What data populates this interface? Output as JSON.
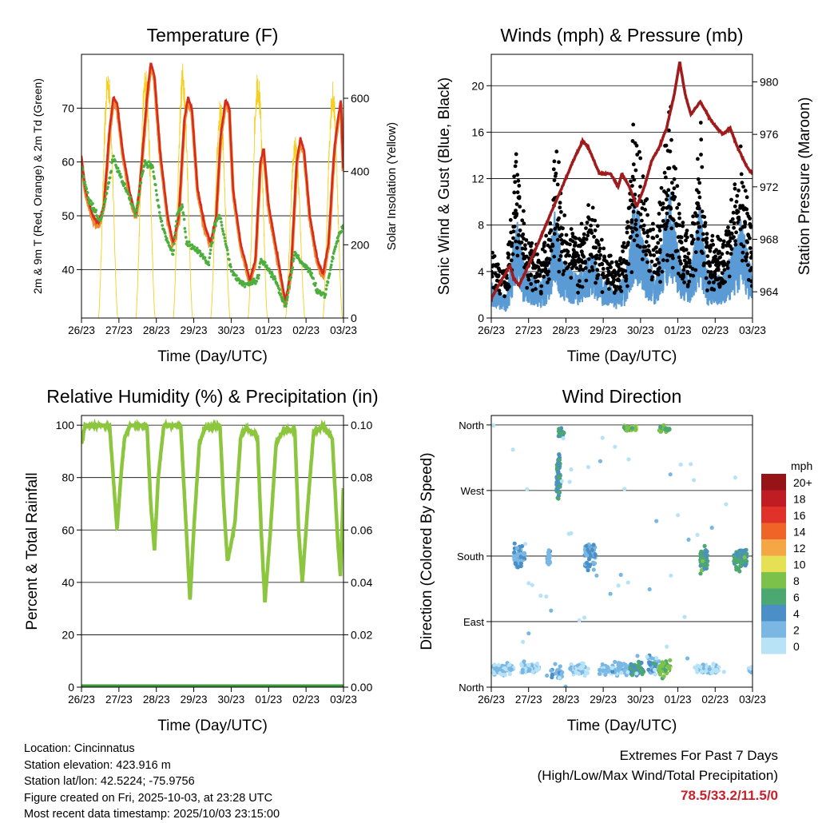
{
  "chart_data": [
    {
      "type": "line",
      "title": "Temperature (F)",
      "xlabel": "Time (Day/UTC)",
      "ylabel": "2m & 9m T (Red, Orange) & 2m Td (Green)",
      "ylabel_right": "Solar Insolation (Yellow)",
      "x_ticks": [
        "26/23",
        "27/23",
        "28/23",
        "29/23",
        "30/23",
        "01/23",
        "02/23",
        "03/23"
      ],
      "xlim_days": [
        0,
        7
      ],
      "ylim": [
        31,
        80
      ],
      "ylim_right": [
        0,
        720
      ],
      "y_ticks": [
        40,
        50,
        60,
        70
      ],
      "y_ticks_right": [
        0,
        200,
        400,
        600
      ],
      "series": [
        {
          "name": "2m T",
          "color": "#d42a20",
          "points": [
            [
              0,
              61
            ],
            [
              0.1,
              55
            ],
            [
              0.3,
              50
            ],
            [
              0.45,
              48.5
            ],
            [
              0.6,
              52
            ],
            [
              0.75,
              66
            ],
            [
              0.85,
              72
            ],
            [
              0.95,
              71
            ],
            [
              1.1,
              62
            ],
            [
              1.3,
              54
            ],
            [
              1.45,
              50
            ],
            [
              1.55,
              55
            ],
            [
              1.75,
              72
            ],
            [
              1.85,
              78.5
            ],
            [
              1.95,
              76
            ],
            [
              2.1,
              62
            ],
            [
              2.3,
              50
            ],
            [
              2.45,
              45
            ],
            [
              2.6,
              50
            ],
            [
              2.75,
              68
            ],
            [
              2.85,
              72
            ],
            [
              2.95,
              70
            ],
            [
              3.1,
              55
            ],
            [
              3.3,
              48
            ],
            [
              3.45,
              45
            ],
            [
              3.6,
              50
            ],
            [
              3.72,
              65
            ],
            [
              3.85,
              71.5
            ],
            [
              3.95,
              70
            ],
            [
              4.05,
              55
            ],
            [
              4.25,
              45
            ],
            [
              4.5,
              38
            ],
            [
              4.65,
              42
            ],
            [
              4.78,
              60
            ],
            [
              4.87,
              62.5
            ],
            [
              5.0,
              52
            ],
            [
              5.25,
              42
            ],
            [
              5.45,
              34
            ],
            [
              5.6,
              40
            ],
            [
              5.75,
              60
            ],
            [
              5.85,
              64.5
            ],
            [
              5.95,
              62
            ],
            [
              6.1,
              50
            ],
            [
              6.3,
              42
            ],
            [
              6.45,
              39
            ],
            [
              6.6,
              45
            ],
            [
              6.75,
              62
            ],
            [
              6.85,
              68
            ],
            [
              6.93,
              71.5
            ],
            [
              7.0,
              57
            ]
          ]
        },
        {
          "name": "9m T",
          "color": "#f08a30",
          "offset": 0.6
        },
        {
          "name": "2m Td",
          "color": "#4caf3c",
          "points": [
            [
              0,
              59
            ],
            [
              0.2,
              53
            ],
            [
              0.5,
              49
            ],
            [
              0.7,
              55
            ],
            [
              0.85,
              61
            ],
            [
              1.0,
              58
            ],
            [
              1.3,
              53
            ],
            [
              1.45,
              50
            ],
            [
              1.6,
              57
            ],
            [
              1.7,
              60
            ],
            [
              1.9,
              59
            ],
            [
              2.1,
              50
            ],
            [
              2.3,
              45
            ],
            [
              2.45,
              43
            ],
            [
              2.55,
              50
            ],
            [
              2.7,
              52
            ],
            [
              2.8,
              45
            ],
            [
              3.0,
              44
            ],
            [
              3.2,
              43
            ],
            [
              3.4,
              41
            ],
            [
              3.55,
              48
            ],
            [
              3.7,
              50
            ],
            [
              3.85,
              45
            ],
            [
              4.0,
              40
            ],
            [
              4.2,
              38
            ],
            [
              4.4,
              37
            ],
            [
              4.7,
              38
            ],
            [
              4.8,
              42
            ],
            [
              5.0,
              40
            ],
            [
              5.2,
              38
            ],
            [
              5.45,
              33
            ],
            [
              5.7,
              43
            ],
            [
              5.9,
              41
            ],
            [
              6.1,
              40
            ],
            [
              6.3,
              36
            ],
            [
              6.5,
              35
            ],
            [
              6.7,
              42
            ],
            [
              6.85,
              46
            ],
            [
              7.0,
              48
            ]
          ]
        },
        {
          "name": "Solar Insolation",
          "color": "#f5d020",
          "axis": "right",
          "daily_peaks": [
            690,
            690,
            700,
            600,
            690,
            500,
            650
          ]
        }
      ]
    },
    {
      "type": "scatter",
      "title": "Winds (mph) & Pressure (mb)",
      "xlabel": "Time (Day/UTC)",
      "ylabel": "Sonic Wind & Gust (Blue, Black)",
      "ylabel_right": "Station Pressure (Maroon)",
      "x_ticks": [
        "26/23",
        "27/23",
        "28/23",
        "29/23",
        "30/23",
        "01/23",
        "02/23",
        "03/23"
      ],
      "ylim": [
        0,
        22.7
      ],
      "ylim_right": [
        962,
        982.1
      ],
      "y_ticks": [
        0,
        4,
        8,
        12,
        16,
        20
      ],
      "y_ticks_right": [
        964,
        968,
        972,
        976,
        980
      ],
      "series": [
        {
          "name": "Sonic Wind",
          "color": "#5a9bd5",
          "envelope": [
            [
              0,
              2.5
            ],
            [
              0.4,
              1.5
            ],
            [
              0.7,
              7
            ],
            [
              0.85,
              4
            ],
            [
              1.2,
              2.5
            ],
            [
              1.5,
              3
            ],
            [
              1.7,
              8
            ],
            [
              1.9,
              4
            ],
            [
              2.3,
              3
            ],
            [
              2.7,
              5
            ],
            [
              2.9,
              3
            ],
            [
              3.3,
              2
            ],
            [
              3.6,
              3
            ],
            [
              3.85,
              9
            ],
            [
              4.1,
              5
            ],
            [
              4.4,
              3
            ],
            [
              4.6,
              6
            ],
            [
              4.8,
              9
            ],
            [
              5.0,
              5
            ],
            [
              5.3,
              3
            ],
            [
              5.6,
              8
            ],
            [
              5.8,
              3
            ],
            [
              6.2,
              3
            ],
            [
              6.5,
              5
            ],
            [
              6.7,
              7
            ],
            [
              7,
              3
            ]
          ]
        },
        {
          "name": "Gust",
          "color": "#000000"
        },
        {
          "name": "Station Pressure",
          "color": "#a01c1c",
          "points": [
            [
              0,
              963.5
            ],
            [
              0.3,
              965
            ],
            [
              0.5,
              966
            ],
            [
              0.6,
              965
            ],
            [
              0.75,
              964.5
            ],
            [
              1.0,
              966
            ],
            [
              1.3,
              968
            ],
            [
              1.6,
              970
            ],
            [
              1.9,
              972
            ],
            [
              2.2,
              974
            ],
            [
              2.45,
              975.5
            ],
            [
              2.6,
              975
            ],
            [
              2.9,
              973
            ],
            [
              3.2,
              973
            ],
            [
              3.4,
              972
            ],
            [
              3.5,
              973
            ],
            [
              3.7,
              972
            ],
            [
              3.9,
              970.5
            ],
            [
              4.1,
              972
            ],
            [
              4.3,
              974
            ],
            [
              4.5,
              975
            ],
            [
              4.7,
              976.5
            ],
            [
              4.9,
              979
            ],
            [
              5.05,
              981.5
            ],
            [
              5.2,
              979
            ],
            [
              5.35,
              977.5
            ],
            [
              5.6,
              978.5
            ],
            [
              5.9,
              977
            ],
            [
              6.2,
              976
            ],
            [
              6.4,
              976.5
            ],
            [
              6.6,
              975
            ],
            [
              6.85,
              973.5
            ],
            [
              7,
              973
            ]
          ]
        }
      ]
    },
    {
      "type": "line",
      "title": "Relative Humidity (%) & Precipitation (in)",
      "xlabel": "Time (Day/UTC)",
      "ylabel": "Percent & Total Rainfall",
      "x_ticks": [
        "26/23",
        "27/23",
        "28/23",
        "29/23",
        "30/23",
        "01/23",
        "02/23",
        "03/23"
      ],
      "ylim": [
        0,
        103.7
      ],
      "ylim_right": [
        0,
        0.1037
      ],
      "y_ticks": [
        0,
        20,
        40,
        60,
        80,
        100
      ],
      "y_ticks_right": [
        "0.00",
        "0.02",
        "0.04",
        "0.06",
        "0.08",
        "0.10"
      ],
      "series": [
        {
          "name": "Relative Humidity",
          "color": "#8cc63f",
          "points": [
            [
              0,
              93
            ],
            [
              0.1,
              100
            ],
            [
              0.75,
              100
            ],
            [
              0.85,
              80
            ],
            [
              0.95,
              60
            ],
            [
              1.05,
              80
            ],
            [
              1.15,
              95
            ],
            [
              1.3,
              100
            ],
            [
              1.75,
              100
            ],
            [
              1.85,
              70
            ],
            [
              1.95,
              52
            ],
            [
              2.05,
              80
            ],
            [
              2.2,
              100
            ],
            [
              2.65,
              100
            ],
            [
              2.8,
              60
            ],
            [
              2.9,
              33
            ],
            [
              3.0,
              60
            ],
            [
              3.15,
              93
            ],
            [
              3.3,
              99
            ],
            [
              3.7,
              100
            ],
            [
              3.8,
              70
            ],
            [
              3.9,
              48
            ],
            [
              4.0,
              55
            ],
            [
              4.1,
              63
            ],
            [
              4.25,
              95
            ],
            [
              4.4,
              99
            ],
            [
              4.7,
              96
            ],
            [
              4.8,
              60
            ],
            [
              4.9,
              32
            ],
            [
              5.05,
              60
            ],
            [
              5.2,
              93
            ],
            [
              5.4,
              98
            ],
            [
              5.7,
              98
            ],
            [
              5.8,
              60
            ],
            [
              5.9,
              40
            ],
            [
              6.05,
              70
            ],
            [
              6.2,
              97
            ],
            [
              6.45,
              100
            ],
            [
              6.7,
              95
            ],
            [
              6.85,
              55
            ],
            [
              6.92,
              42
            ],
            [
              7.0,
              78
            ]
          ]
        },
        {
          "name": "Total Precipitation",
          "color": "#3a9a3a",
          "points": [
            [
              0,
              0
            ],
            [
              7,
              0
            ]
          ]
        }
      ]
    },
    {
      "type": "scatter",
      "title": "Wind Direction",
      "xlabel": "Time (Day/UTC)",
      "ylabel": "Direction (Colored By Speed)",
      "x_ticks": [
        "26/23",
        "27/23",
        "28/23",
        "29/23",
        "30/23",
        "01/23",
        "02/23",
        "03/23"
      ],
      "ylim": [
        0,
        373
      ],
      "y_ticks": [
        {
          "v": 0,
          "label": "North"
        },
        {
          "v": 90,
          "label": "East"
        },
        {
          "v": 180,
          "label": "South"
        },
        {
          "v": 270,
          "label": "West"
        },
        {
          "v": 360,
          "label": "North"
        }
      ],
      "clusters": [
        [
          0,
          0.6,
          25,
          12,
          2,
          70
        ],
        [
          0.8,
          1.3,
          25,
          12,
          2,
          50
        ],
        [
          1.6,
          1.9,
          20,
          15,
          3,
          25
        ],
        [
          2.1,
          2.6,
          25,
          12,
          2,
          55
        ],
        [
          2.9,
          3.7,
          25,
          12,
          2.5,
          80
        ],
        [
          3.7,
          4.1,
          25,
          15,
          6,
          55
        ],
        [
          4.2,
          4.5,
          30,
          15,
          4,
          35
        ],
        [
          4.5,
          4.8,
          25,
          15,
          8.5,
          50
        ],
        [
          5.5,
          6.1,
          25,
          10,
          2,
          60
        ],
        [
          6.9,
          7,
          25,
          10,
          2,
          12
        ],
        [
          0.6,
          0.9,
          180,
          20,
          4,
          60
        ],
        [
          1.5,
          1.6,
          180,
          20,
          3,
          20
        ],
        [
          2.5,
          2.8,
          180,
          25,
          4,
          55
        ],
        [
          5.6,
          5.8,
          175,
          22,
          6.5,
          70
        ],
        [
          6.5,
          6.85,
          175,
          22,
          6.5,
          70
        ],
        [
          3.55,
          3.9,
          355,
          6,
          8.5,
          25
        ],
        [
          4.5,
          4.8,
          355,
          6,
          8,
          20
        ],
        [
          1.8,
          1.95,
          350,
          10,
          6,
          18
        ],
        [
          1.75,
          1.85,
          290,
          40,
          6,
          70
        ],
        [
          0,
          7,
          180,
          180,
          1.5,
          60
        ]
      ],
      "legend": {
        "title": "mph",
        "placement": "right",
        "bins": [
          "20+",
          "18",
          "16",
          "14",
          "12",
          "10",
          "8",
          "6",
          "4",
          "2",
          "0"
        ],
        "colors": [
          "#961418",
          "#c01c24",
          "#e03228",
          "#f06428",
          "#f5a645",
          "#e6e055",
          "#7cc24a",
          "#4aa870",
          "#4a8fc7",
          "#7ab8e3",
          "#b8e3f7"
        ]
      }
    }
  ],
  "info": {
    "location": "Location: Cincinnatus",
    "elevation": "Station elevation: 423.916 m",
    "latlon": "Station lat/lon: 42.5224; -75.9756",
    "created": "Figure created on Fri, 2025-10-03, at 23:28 UTC",
    "timestamp": "Most recent data timestamp: 2025/10/03 23:15:00"
  },
  "extremes": {
    "title": "Extremes For Past 7 Days",
    "subtitle": "(High/Low/Max Wind/Total Precipitation)",
    "value": "78.5/33.2/11.5/0"
  }
}
